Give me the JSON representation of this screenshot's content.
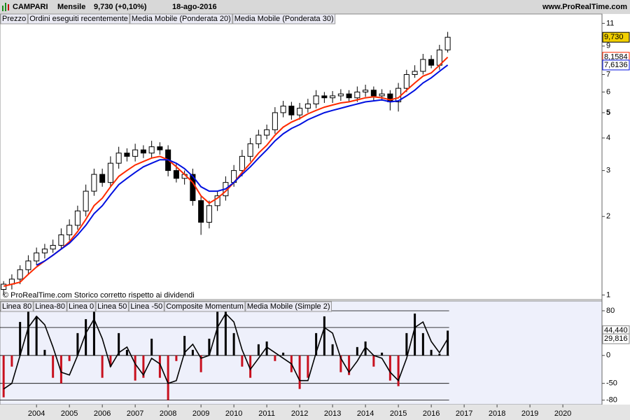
{
  "header": {
    "symbol": "CAMPARI",
    "period": "Mensile",
    "quote": "9,730 (+0,10%)",
    "date": "18-ago-2016",
    "site": "www.ProRealTime.com"
  },
  "chart_data": [
    {
      "type": "candlestick",
      "name": "Prezzo",
      "extra_legend": {
        "name": "Ordini eseguiti recentemente",
        "color": "#e88080"
      },
      "note": "© ProRealTime.com  Storico corretto rispetto ai dividendi",
      "x": [
        2003,
        2003.25,
        2003.5,
        2003.75,
        2004,
        2004.25,
        2004.5,
        2004.75,
        2005,
        2005.25,
        2005.5,
        2005.75,
        2006,
        2006.25,
        2006.5,
        2006.75,
        2007,
        2007.25,
        2007.5,
        2007.75,
        2008,
        2008.25,
        2008.5,
        2008.75,
        2009,
        2009.25,
        2009.5,
        2009.75,
        2010,
        2010.25,
        2010.5,
        2010.75,
        2011,
        2011.25,
        2011.5,
        2011.75,
        2012,
        2012.25,
        2012.5,
        2012.75,
        2013,
        2013.25,
        2013.5,
        2013.75,
        2014,
        2014.25,
        2014.5,
        2014.75,
        2015,
        2015.25,
        2015.5,
        2015.75,
        2016,
        2016.25,
        2016.5
      ],
      "open": [
        1.05,
        1.1,
        1.15,
        1.25,
        1.35,
        1.45,
        1.5,
        1.55,
        1.7,
        1.85,
        2.1,
        2.5,
        2.9,
        2.7,
        3.2,
        3.5,
        3.4,
        3.6,
        3.5,
        3.7,
        3.6,
        3.0,
        2.8,
        2.9,
        2.3,
        1.9,
        2.2,
        2.4,
        2.7,
        3.0,
        3.4,
        3.8,
        4.1,
        4.3,
        5.0,
        5.3,
        4.9,
        5.2,
        5.4,
        5.8,
        5.7,
        5.8,
        5.9,
        5.7,
        6.0,
        6.1,
        5.8,
        5.9,
        5.5,
        6.2,
        7.0,
        7.2,
        8.0,
        7.6,
        8.7
      ],
      "high": [
        1.13,
        1.2,
        1.3,
        1.42,
        1.52,
        1.57,
        1.63,
        1.8,
        1.95,
        2.2,
        2.65,
        3.05,
        3.05,
        3.4,
        3.7,
        3.65,
        3.8,
        3.75,
        3.9,
        3.85,
        3.75,
        3.2,
        3.0,
        3.05,
        2.4,
        2.3,
        2.5,
        2.85,
        3.15,
        3.6,
        4.0,
        4.3,
        4.5,
        5.25,
        5.55,
        5.5,
        5.45,
        5.65,
        6.1,
        6.0,
        6.05,
        6.15,
        6.1,
        6.3,
        6.4,
        6.3,
        6.15,
        6.1,
        6.5,
        7.3,
        7.6,
        8.4,
        8.3,
        9.1,
        10.2
      ],
      "low": [
        1.0,
        1.05,
        1.1,
        1.2,
        1.3,
        1.38,
        1.45,
        1.5,
        1.62,
        1.78,
        2.0,
        2.4,
        2.6,
        2.6,
        3.05,
        3.25,
        3.25,
        3.35,
        3.35,
        3.45,
        2.85,
        2.7,
        2.65,
        2.2,
        1.7,
        1.8,
        2.1,
        2.3,
        2.6,
        2.85,
        3.25,
        3.65,
        3.95,
        4.15,
        4.8,
        4.7,
        4.7,
        5.0,
        5.2,
        5.45,
        5.45,
        5.55,
        5.5,
        5.5,
        5.75,
        5.55,
        5.55,
        5.1,
        5.05,
        6.0,
        6.8,
        7.0,
        7.4,
        7.3,
        8.5
      ],
      "close": [
        1.1,
        1.15,
        1.25,
        1.35,
        1.45,
        1.5,
        1.55,
        1.7,
        1.85,
        2.1,
        2.5,
        2.9,
        2.7,
        3.2,
        3.5,
        3.4,
        3.6,
        3.5,
        3.7,
        3.6,
        3.0,
        2.8,
        2.9,
        2.3,
        1.9,
        2.2,
        2.4,
        2.7,
        3.0,
        3.4,
        3.8,
        4.1,
        4.3,
        5.0,
        5.3,
        4.9,
        5.2,
        5.4,
        5.8,
        5.7,
        5.8,
        5.9,
        5.7,
        6.0,
        6.1,
        5.8,
        5.9,
        5.5,
        6.2,
        7.0,
        7.2,
        8.0,
        7.6,
        8.7,
        9.73
      ],
      "last_label": "9,730",
      "series": [
        {
          "name": "Media Mobile (Ponderata 20)",
          "color": "#ff2a00",
          "last_label": "8,1584",
          "values": [
            1.08,
            1.1,
            1.12,
            1.2,
            1.28,
            1.35,
            1.42,
            1.5,
            1.6,
            1.75,
            1.95,
            2.2,
            2.35,
            2.6,
            2.85,
            3.0,
            3.15,
            3.25,
            3.35,
            3.4,
            3.3,
            3.1,
            2.9,
            2.7,
            2.4,
            2.25,
            2.35,
            2.5,
            2.7,
            2.95,
            3.2,
            3.5,
            3.75,
            4.1,
            4.4,
            4.6,
            4.75,
            4.95,
            5.1,
            5.25,
            5.35,
            5.45,
            5.5,
            5.6,
            5.7,
            5.75,
            5.7,
            5.6,
            5.7,
            6.1,
            6.5,
            6.9,
            7.1,
            7.6,
            8.1584
          ]
        },
        {
          "name": "Media Mobile (Ponderata 30)",
          "color": "#0010e0",
          "last_label": "7,6136",
          "values": [
            null,
            null,
            null,
            null,
            1.3,
            1.35,
            1.42,
            1.5,
            1.58,
            1.7,
            1.85,
            2.05,
            2.2,
            2.42,
            2.65,
            2.8,
            2.95,
            3.1,
            3.2,
            3.3,
            3.3,
            3.2,
            3.05,
            2.85,
            2.6,
            2.5,
            2.5,
            2.55,
            2.7,
            2.9,
            3.1,
            3.35,
            3.6,
            3.9,
            4.15,
            4.35,
            4.5,
            4.7,
            4.85,
            5.0,
            5.1,
            5.2,
            5.3,
            5.4,
            5.5,
            5.55,
            5.6,
            5.5,
            5.55,
            5.8,
            6.1,
            6.5,
            6.8,
            7.2,
            7.6136
          ]
        }
      ],
      "log": true,
      "ylim": [
        0.96,
        11.8
      ],
      "yticks": [
        1,
        2,
        3,
        4,
        5,
        6,
        7,
        9,
        11
      ],
      "xlim": [
        2002.89,
        2021.19
      ],
      "xticks": [
        2004,
        2005,
        2006,
        2007,
        2008,
        2009,
        2010,
        2011,
        2012,
        2013,
        2014,
        2015,
        2016,
        2017,
        2018,
        2019,
        2020
      ]
    },
    {
      "type": "bar",
      "lines": [
        {
          "name": "Linea 80",
          "value": 80
        },
        {
          "name": "Linea-80",
          "value": -80
        },
        {
          "name": "Linea 0",
          "value": 0
        },
        {
          "name": "Linea 50",
          "value": 50
        },
        {
          "name": "Linea -50",
          "value": -50
        }
      ],
      "series": [
        {
          "name": "Composite Momentum",
          "color": "#000000",
          "negative_color": "#c8101e",
          "last_label": "44,440",
          "values": [
            -75,
            -20,
            60,
            80,
            70,
            10,
            -40,
            -50,
            -10,
            40,
            65,
            80,
            -40,
            -20,
            40,
            10,
            -45,
            -40,
            30,
            -40,
            -80,
            -10,
            35,
            10,
            -30,
            30,
            80,
            80,
            40,
            -20,
            -40,
            20,
            25,
            -10,
            5,
            -30,
            -60,
            -40,
            40,
            70,
            20,
            -30,
            -35,
            15,
            25,
            -20,
            5,
            -45,
            -55,
            40,
            75,
            40,
            10,
            3,
            44.44
          ]
        },
        {
          "name": "Media Mobile (Simple 2)",
          "color": "#000000",
          "last_label": "29,816",
          "values": [
            -60,
            -50,
            0,
            50,
            70,
            55,
            15,
            -30,
            -35,
            0,
            40,
            65,
            30,
            -20,
            5,
            15,
            -15,
            -35,
            -5,
            -15,
            -50,
            -45,
            5,
            20,
            -5,
            0,
            50,
            75,
            60,
            10,
            -25,
            -5,
            15,
            5,
            -5,
            -15,
            -45,
            -45,
            5,
            50,
            40,
            -5,
            -30,
            -10,
            15,
            0,
            -5,
            -30,
            -45,
            -5,
            50,
            60,
            25,
            5,
            29.816
          ]
        }
      ],
      "ylim": [
        -88,
        95
      ],
      "yticks": [
        80,
        0,
        -50,
        -80
      ]
    }
  ]
}
